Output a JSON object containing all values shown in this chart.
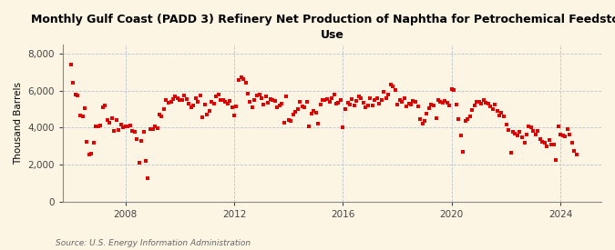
{
  "title": "Monthly Gulf Coast (PADD 3) Refinery Net Production of Naphtha for Petrochemical Feedstock\nUse",
  "ylabel": "Thousand Barrels",
  "source": "Source: U.S. Energy Information Administration",
  "background_color": "#fdf5e4",
  "dot_color": "#dd0000",
  "dot_size": 7,
  "ylim": [
    0,
    8500
  ],
  "yticks": [
    0,
    2000,
    4000,
    6000,
    8000
  ],
  "ytick_labels": [
    "0",
    "2,000",
    "4,000",
    "6,000",
    "8,000"
  ],
  "xticks": [
    2008,
    2012,
    2016,
    2020,
    2024
  ],
  "xlim_left": 2005.7,
  "xlim_right": 2025.5,
  "grid_color": "#b8c4d0",
  "title_fontsize": 9.0,
  "axis_fontsize": 7.5,
  "data": {
    "dates": [
      2006.0,
      2006.08,
      2006.17,
      2006.25,
      2006.33,
      2006.42,
      2006.5,
      2006.58,
      2006.67,
      2006.75,
      2006.83,
      2006.92,
      2007.0,
      2007.08,
      2007.17,
      2007.25,
      2007.33,
      2007.42,
      2007.5,
      2007.58,
      2007.67,
      2007.75,
      2007.83,
      2007.92,
      2008.0,
      2008.08,
      2008.17,
      2008.25,
      2008.33,
      2008.42,
      2008.5,
      2008.58,
      2008.67,
      2008.75,
      2008.83,
      2008.92,
      2009.0,
      2009.08,
      2009.17,
      2009.25,
      2009.33,
      2009.42,
      2009.5,
      2009.58,
      2009.67,
      2009.75,
      2009.83,
      2009.92,
      2010.0,
      2010.08,
      2010.17,
      2010.25,
      2010.33,
      2010.42,
      2010.5,
      2010.58,
      2010.67,
      2010.75,
      2010.83,
      2010.92,
      2011.0,
      2011.08,
      2011.17,
      2011.25,
      2011.33,
      2011.42,
      2011.5,
      2011.58,
      2011.67,
      2011.75,
      2011.83,
      2011.92,
      2012.0,
      2012.08,
      2012.17,
      2012.25,
      2012.33,
      2012.42,
      2012.5,
      2012.58,
      2012.67,
      2012.75,
      2012.83,
      2012.92,
      2013.0,
      2013.08,
      2013.17,
      2013.25,
      2013.33,
      2013.42,
      2013.5,
      2013.58,
      2013.67,
      2013.75,
      2013.83,
      2013.92,
      2014.0,
      2014.08,
      2014.17,
      2014.25,
      2014.33,
      2014.42,
      2014.5,
      2014.58,
      2014.67,
      2014.75,
      2014.83,
      2014.92,
      2015.0,
      2015.08,
      2015.17,
      2015.25,
      2015.33,
      2015.42,
      2015.5,
      2015.58,
      2015.67,
      2015.75,
      2015.83,
      2015.92,
      2016.0,
      2016.08,
      2016.17,
      2016.25,
      2016.33,
      2016.42,
      2016.5,
      2016.58,
      2016.67,
      2016.75,
      2016.83,
      2016.92,
      2017.0,
      2017.08,
      2017.17,
      2017.25,
      2017.33,
      2017.42,
      2017.5,
      2017.58,
      2017.67,
      2017.75,
      2017.83,
      2017.92,
      2018.0,
      2018.08,
      2018.17,
      2018.25,
      2018.33,
      2018.42,
      2018.5,
      2018.58,
      2018.67,
      2018.75,
      2018.83,
      2018.92,
      2019.0,
      2019.08,
      2019.17,
      2019.25,
      2019.33,
      2019.42,
      2019.5,
      2019.58,
      2019.67,
      2019.75,
      2019.83,
      2019.92,
      2020.0,
      2020.08,
      2020.17,
      2020.25,
      2020.33,
      2020.42,
      2020.5,
      2020.58,
      2020.67,
      2020.75,
      2020.83,
      2020.92,
      2021.0,
      2021.08,
      2021.17,
      2021.25,
      2021.33,
      2021.42,
      2021.5,
      2021.58,
      2021.67,
      2021.75,
      2021.83,
      2021.92,
      2022.0,
      2022.08,
      2022.17,
      2022.25,
      2022.33,
      2022.42,
      2022.5,
      2022.58,
      2022.67,
      2022.75,
      2022.83,
      2022.92,
      2023.0,
      2023.08,
      2023.17,
      2023.25,
      2023.33,
      2023.42,
      2023.5,
      2023.58,
      2023.67,
      2023.75,
      2023.83,
      2023.92,
      2024.0,
      2024.08,
      2024.17,
      2024.25,
      2024.33,
      2024.42,
      2024.5,
      2024.58
    ],
    "values": [
      7400,
      6450,
      5800,
      5750,
      4650,
      4600,
      5050,
      3250,
      2550,
      2600,
      3200,
      4050,
      4050,
      4100,
      5100,
      5200,
      4400,
      4250,
      4500,
      3800,
      4400,
      3850,
      4150,
      4000,
      4050,
      4050,
      4100,
      3800,
      3750,
      3400,
      2100,
      3300,
      3750,
      2200,
      1250,
      3900,
      3900,
      4050,
      3950,
      4700,
      4600,
      5000,
      5500,
      5350,
      5400,
      5550,
      5700,
      5600,
      5500,
      5500,
      5750,
      5550,
      5300,
      5100,
      5200,
      5600,
      5400,
      5750,
      4550,
      5250,
      4700,
      4900,
      5400,
      5300,
      5700,
      5800,
      5500,
      5500,
      5400,
      5300,
      5450,
      5100,
      4650,
      5150,
      6600,
      6750,
      6650,
      6450,
      5850,
      5400,
      5100,
      5500,
      5750,
      5800,
      5600,
      5250,
      5700,
      5350,
      5550,
      5500,
      5450,
      5100,
      5200,
      5300,
      4250,
      5700,
      4400,
      4350,
      4700,
      4850,
      5000,
      5400,
      5150,
      5100,
      5400,
      4050,
      4750,
      4900,
      4800,
      4200,
      5250,
      5500,
      5500,
      5550,
      5400,
      5600,
      5800,
      5300,
      5350,
      5500,
      4000,
      5000,
      5350,
      5250,
      5550,
      5200,
      5450,
      5700,
      5600,
      5350,
      5100,
      5200,
      5600,
      5200,
      5500,
      5600,
      5300,
      5500,
      5950,
      5600,
      5800,
      6350,
      6250,
      6050,
      5250,
      5500,
      5400,
      5600,
      5150,
      5300,
      5250,
      5450,
      5400,
      5150,
      4450,
      4200,
      4350,
      4750,
      5050,
      5250,
      5200,
      4500,
      5500,
      5400,
      5350,
      5450,
      5350,
      5200,
      6100,
      6050,
      5250,
      4450,
      3600,
      2700,
      4350,
      4450,
      4600,
      4950,
      5200,
      5400,
      5400,
      5300,
      5500,
      5350,
      5300,
      5150,
      5000,
      5250,
      4900,
      4650,
      4800,
      4600,
      4150,
      3850,
      2650,
      3750,
      3700,
      3600,
      3750,
      3500,
      3200,
      3650,
      4050,
      4000,
      3800,
      3650,
      3800,
      3400,
      3250,
      3200,
      3000,
      3350,
      3100,
      3100,
      2250,
      4050,
      3650,
      3600,
      3550,
      3900,
      3650,
      3200,
      2750,
      2550
    ]
  }
}
